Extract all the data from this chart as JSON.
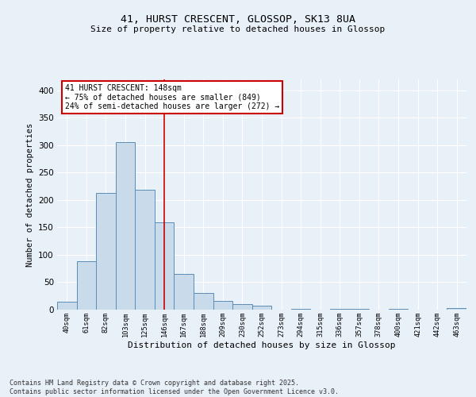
{
  "title1": "41, HURST CRESCENT, GLOSSOP, SK13 8UA",
  "title2": "Size of property relative to detached houses in Glossop",
  "xlabel": "Distribution of detached houses by size in Glossop",
  "ylabel": "Number of detached properties",
  "bin_labels": [
    "40sqm",
    "61sqm",
    "82sqm",
    "103sqm",
    "125sqm",
    "146sqm",
    "167sqm",
    "188sqm",
    "209sqm",
    "230sqm",
    "252sqm",
    "273sqm",
    "294sqm",
    "315sqm",
    "336sqm",
    "357sqm",
    "378sqm",
    "400sqm",
    "421sqm",
    "442sqm",
    "463sqm"
  ],
  "bar_values": [
    15,
    88,
    213,
    305,
    218,
    160,
    65,
    30,
    16,
    10,
    7,
    0,
    1,
    0,
    2,
    1,
    0,
    1,
    0,
    0,
    3
  ],
  "bar_color": "#c9daea",
  "bar_edge_color": "#5b8db8",
  "annotation_text": "41 HURST CRESCENT: 148sqm\n← 75% of detached houses are smaller (849)\n24% of semi-detached houses are larger (272) →",
  "annotation_box_color": "#ffffff",
  "annotation_box_edge": "#cc0000",
  "vline_color": "#cc0000",
  "bg_color": "#e8f0f8",
  "grid_color": "#ffffff",
  "footer1": "Contains HM Land Registry data © Crown copyright and database right 2025.",
  "footer2": "Contains public sector information licensed under the Open Government Licence v3.0.",
  "ylim": [
    0,
    420
  ],
  "yticks": [
    0,
    50,
    100,
    150,
    200,
    250,
    300,
    350,
    400
  ],
  "vline_bar_index": 5
}
